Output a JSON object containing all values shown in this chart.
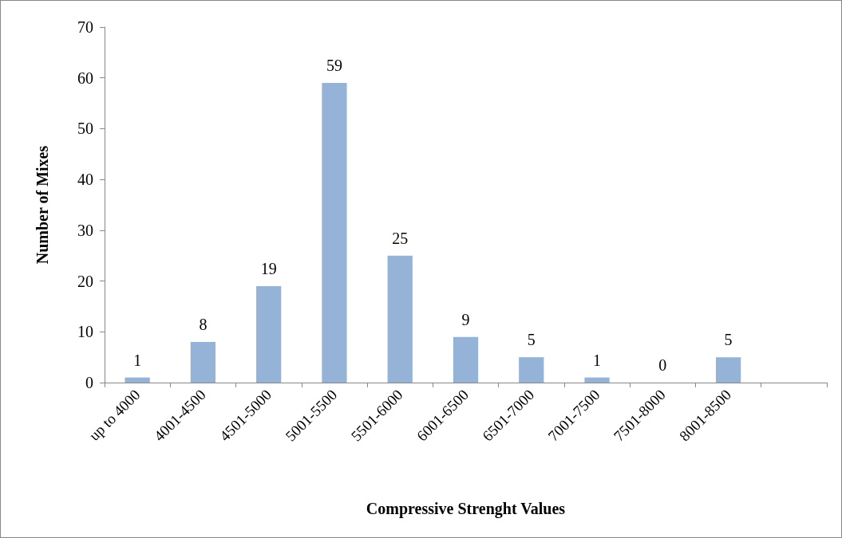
{
  "chart_data": {
    "type": "bar",
    "xlabel": "Compressive Strenght Values",
    "ylabel": "Number of Mixes",
    "categories": [
      "up to 4000",
      "4001-4500",
      "4501-5000",
      "5001-5500",
      "5501-6000",
      "6001-6500",
      "6501-7000",
      "7001-7500",
      "7501-8000",
      "8001-8500",
      null
    ],
    "values": [
      1,
      8,
      19,
      59,
      25,
      9,
      5,
      1,
      0,
      5,
      null
    ],
    "color": "#95b3d7",
    "ylim": [
      0,
      70
    ],
    "yticks": [
      0,
      10,
      20,
      30,
      40,
      50,
      60,
      70
    ],
    "grid": false,
    "data_labels": true
  }
}
